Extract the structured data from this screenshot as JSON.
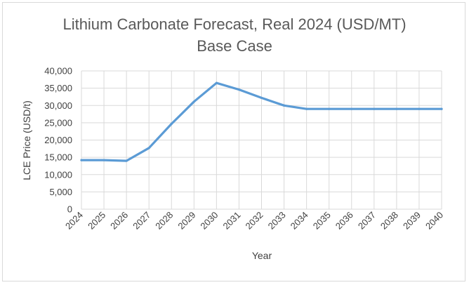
{
  "chart_data": {
    "type": "line",
    "title": "Lithium Carbonate Forecast, Real 2024 (USD/MT)",
    "subtitle": "Base Case",
    "xlabel": "Year",
    "ylabel": "LCE Price (USD/t)",
    "ylim": [
      0,
      40000
    ],
    "yticks": [
      "0",
      "5,000",
      "10,000",
      "15,000",
      "20,000",
      "25,000",
      "30,000",
      "35,000",
      "40,000"
    ],
    "grid": true,
    "categories": [
      "2024",
      "2025",
      "2026",
      "2027",
      "2028",
      "2029",
      "2030",
      "2031",
      "2032",
      "2033",
      "2034",
      "2035",
      "2036",
      "2037",
      "2038",
      "2039",
      "2040"
    ],
    "series": [
      {
        "color": "#5b9bd5",
        "values": [
          14200,
          14200,
          14000,
          17700,
          24700,
          31100,
          36500,
          34600,
          32200,
          30000,
          29000,
          29000,
          29000,
          29000,
          29000,
          29000,
          29000
        ]
      }
    ]
  }
}
